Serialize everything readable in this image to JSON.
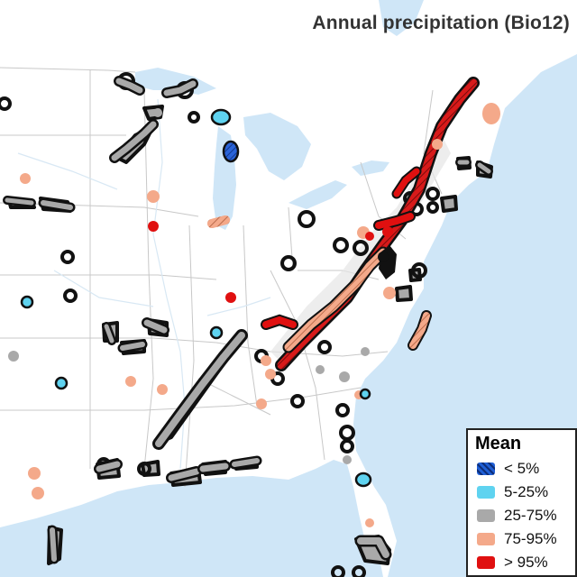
{
  "map": {
    "title": "Annual precipitation (Bio12)",
    "legend": {
      "title": "Mean",
      "items": [
        {
          "label": "< 5%",
          "color": "#1f5fd6",
          "icon": "hatched-dark-blue-swatch"
        },
        {
          "label": "5-25%",
          "color": "#5fd3f0",
          "icon": "light-blue-swatch"
        },
        {
          "label": "25-75%",
          "color": "#a9a9a9",
          "icon": "gray-swatch"
        },
        {
          "label": "75-95%",
          "color": "#f4a98a",
          "icon": "salmon-swatch"
        },
        {
          "label": "> 95%",
          "color": "#e01010",
          "icon": "red-swatch"
        }
      ]
    },
    "colors": {
      "land": "#ffffff",
      "water": "#cfe6f7",
      "borders": "#c8c8c8",
      "outline": "#111111"
    }
  }
}
